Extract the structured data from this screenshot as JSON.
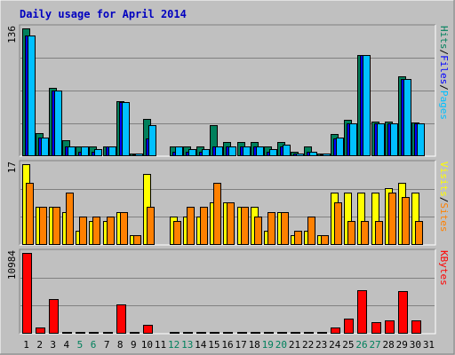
{
  "chart_data": {
    "type": "bar",
    "title": "Daily usage for April 2014",
    "categories": [
      "1",
      "2",
      "3",
      "4",
      "5",
      "6",
      "7",
      "8",
      "9",
      "10",
      "11",
      "12",
      "13",
      "14",
      "15",
      "16",
      "17",
      "18",
      "19",
      "20",
      "21",
      "22",
      "23",
      "24",
      "25",
      "26",
      "27",
      "28",
      "29",
      "30",
      "31"
    ],
    "weekend_days": [
      5,
      6,
      12,
      13,
      19,
      20,
      26,
      27
    ],
    "panels": [
      {
        "id": "hits-files-pages",
        "max_label": "136",
        "ylim": [
          0,
          136
        ],
        "axis_labels": [
          {
            "text": "Pages",
            "color": "#00c0ff"
          },
          {
            "text": "Files",
            "color": "#0000ff"
          },
          {
            "text": "Hits",
            "color": "#00805c"
          }
        ],
        "series": [
          {
            "name": "Hits",
            "color": "#00805c",
            "values": [
              136,
              25,
              73,
              17,
              10,
              10,
              10,
              59,
              3,
              40,
              0,
              10,
              10,
              10,
              33,
              15,
              15,
              15,
              10,
              15,
              5,
              10,
              3,
              24,
              39,
              108,
              37,
              37,
              85,
              36,
              0
            ]
          },
          {
            "name": "Files",
            "color": "#0000ff",
            "values": [
              128,
              20,
              70,
              10,
              5,
              5,
              10,
              58,
              2,
              19,
              0,
              5,
              5,
              5,
              10,
              10,
              10,
              10,
              5,
              10,
              3,
              5,
              2,
              19,
              35,
              108,
              35,
              35,
              82,
              35,
              0
            ]
          },
          {
            "name": "Pages",
            "color": "#00c0ff",
            "values": [
              128,
              20,
              70,
              10,
              10,
              8,
              10,
              58,
              3,
              33,
              0,
              10,
              8,
              8,
              10,
              10,
              10,
              10,
              8,
              12,
              3,
              5,
              3,
              20,
              35,
              108,
              35,
              35,
              82,
              35,
              0
            ]
          }
        ]
      },
      {
        "id": "visits-sites",
        "max_label": "17",
        "ylim": [
          0,
          17
        ],
        "axis_labels": [
          {
            "text": "Sites",
            "color": "#ff8000"
          },
          {
            "text": "Visits",
            "color": "#ffff00"
          }
        ],
        "series": [
          {
            "name": "Visits",
            "color": "#ffff00",
            "values": [
              17,
              8,
              8,
              7,
              3,
              5,
              5,
              7,
              2,
              15,
              0,
              6,
              6,
              6,
              9,
              9,
              8,
              8,
              3,
              7,
              2,
              3,
              2,
              11,
              11,
              11,
              11,
              12,
              13,
              11,
              0
            ]
          },
          {
            "name": "Sites",
            "color": "#ff8000",
            "values": [
              13,
              8,
              8,
              11,
              6,
              6,
              6,
              7,
              2,
              8,
              0,
              5,
              8,
              8,
              13,
              9,
              8,
              6,
              7,
              7,
              3,
              6,
              2,
              9,
              5,
              5,
              5,
              11,
              10,
              5,
              0
            ]
          }
        ]
      },
      {
        "id": "kbytes",
        "max_label": "10984",
        "ylim": [
          0,
          10984
        ],
        "axis_labels": [
          {
            "text": "KBytes",
            "color": "#ff0000"
          }
        ],
        "series": [
          {
            "name": "KBytes",
            "color": "#ff0000",
            "values": [
              10984,
              900,
              4700,
              80,
              80,
              80,
              80,
              4000,
              80,
              1200,
              0,
              80,
              200,
              80,
              200,
              80,
              80,
              300,
              80,
              80,
              80,
              80,
              80,
              900,
              2100,
              5900,
              1600,
              1800,
              5800,
              1800,
              0
            ]
          }
        ]
      }
    ]
  }
}
